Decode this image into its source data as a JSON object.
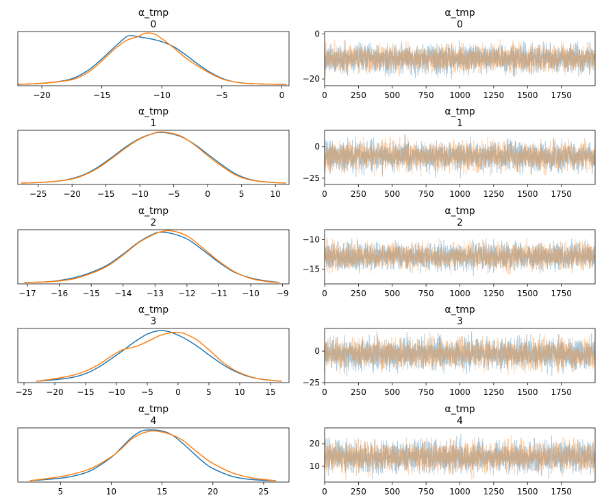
{
  "chart_data": [
    {
      "type": "line",
      "kind": "kde",
      "title_var": "α_tmp",
      "title_index": "0",
      "xlim": [
        -22,
        0.6
      ],
      "xticks": [
        -20,
        -15,
        -10,
        -5,
        0
      ],
      "series": [
        {
          "color": "#1f77b4",
          "x": [
            -22,
            -20,
            -18,
            -17,
            -16,
            -15,
            -14,
            -13,
            -12.5,
            -12,
            -11,
            -10,
            -9,
            -8,
            -7,
            -6,
            -5,
            -4,
            -3,
            -2,
            -1,
            0.4
          ],
          "y": [
            0,
            0.02,
            0.08,
            0.16,
            0.3,
            0.5,
            0.72,
            0.93,
            0.96,
            0.94,
            0.9,
            0.84,
            0.74,
            0.58,
            0.4,
            0.24,
            0.12,
            0.05,
            0.02,
            0.01,
            0.003,
            0
          ]
        },
        {
          "color": "#ff7f0e",
          "x": [
            -22,
            -20,
            -18,
            -17,
            -16,
            -15,
            -14,
            -13,
            -12,
            -11.5,
            -11,
            -10.5,
            -10,
            -9,
            -8,
            -7,
            -6,
            -5,
            -4,
            -3,
            -2,
            -1,
            0.4
          ],
          "y": [
            0,
            0.02,
            0.07,
            0.13,
            0.26,
            0.46,
            0.68,
            0.86,
            0.94,
            1.0,
            1.01,
            0.98,
            0.9,
            0.72,
            0.52,
            0.36,
            0.22,
            0.11,
            0.05,
            0.02,
            0.01,
            0.003,
            0
          ]
        }
      ]
    },
    {
      "type": "line",
      "kind": "trace",
      "title_var": "α_tmp",
      "title_index": "0",
      "xlim": [
        0,
        2000
      ],
      "ylim": [
        -23,
        1
      ],
      "xticks": [
        0,
        250,
        500,
        750,
        1000,
        1250,
        1500,
        1750
      ],
      "yticks": [
        0,
        -20
      ],
      "trace": {
        "n": 2000,
        "center": -11,
        "spread": 3.2
      },
      "series": [
        {
          "color": "#1f77b4"
        },
        {
          "color": "#ff7f0e"
        }
      ]
    },
    {
      "type": "line",
      "kind": "kde",
      "title_var": "α_tmp",
      "title_index": "1",
      "xlim": [
        -28,
        12
      ],
      "xticks": [
        -25,
        -20,
        -15,
        -10,
        -5,
        0,
        5,
        10
      ],
      "series": [
        {
          "color": "#1f77b4",
          "x": [
            -27.5,
            -25,
            -22,
            -20,
            -18,
            -16,
            -14,
            -12,
            -10,
            -8,
            -7,
            -6,
            -4,
            -2,
            0,
            2,
            4,
            6,
            8,
            10,
            11.5
          ],
          "y": [
            0,
            0.01,
            0.04,
            0.09,
            0.18,
            0.33,
            0.52,
            0.72,
            0.88,
            0.98,
            1.0,
            0.99,
            0.92,
            0.77,
            0.57,
            0.37,
            0.19,
            0.08,
            0.03,
            0.01,
            0
          ]
        },
        {
          "color": "#ff7f0e",
          "x": [
            -27.5,
            -25,
            -22,
            -20,
            -18,
            -16,
            -14,
            -12,
            -10,
            -8,
            -7,
            -6,
            -4,
            -2,
            0,
            2,
            4,
            6,
            8,
            10,
            11.5
          ],
          "y": [
            0,
            0.01,
            0.04,
            0.08,
            0.17,
            0.31,
            0.5,
            0.7,
            0.87,
            0.98,
            1.01,
            1.0,
            0.93,
            0.76,
            0.54,
            0.34,
            0.17,
            0.07,
            0.03,
            0.01,
            0
          ]
        }
      ]
    },
    {
      "type": "line",
      "kind": "trace",
      "title_var": "α_tmp",
      "title_index": "1",
      "xlim": [
        0,
        2000
      ],
      "ylim": [
        -30,
        13
      ],
      "xticks": [
        0,
        250,
        500,
        750,
        1000,
        1250,
        1500,
        1750
      ],
      "yticks": [
        0,
        -25
      ],
      "trace": {
        "n": 2000,
        "center": -7.5,
        "spread": 6
      },
      "series": [
        {
          "color": "#1f77b4"
        },
        {
          "color": "#ff7f0e"
        }
      ]
    },
    {
      "type": "line",
      "kind": "kde",
      "title_var": "α_tmp",
      "title_index": "2",
      "xlim": [
        -17.3,
        -8.8
      ],
      "xticks": [
        -17,
        -16,
        -15,
        -14,
        -13,
        -12,
        -11,
        -10,
        -9
      ],
      "series": [
        {
          "color": "#1f77b4",
          "x": [
            -17.1,
            -16.5,
            -16,
            -15.5,
            -15,
            -14.5,
            -14,
            -13.5,
            -13,
            -12.8,
            -12.5,
            -12,
            -11.5,
            -11,
            -10.5,
            -10,
            -9.5,
            -9.1
          ],
          "y": [
            0,
            0.01,
            0.04,
            0.1,
            0.2,
            0.34,
            0.56,
            0.8,
            0.97,
            0.99,
            0.97,
            0.86,
            0.64,
            0.4,
            0.2,
            0.09,
            0.03,
            0
          ]
        },
        {
          "color": "#ff7f0e",
          "x": [
            -17.1,
            -16.5,
            -16,
            -15.5,
            -15,
            -14.5,
            -14,
            -13.5,
            -13,
            -12.8,
            -12.5,
            -12,
            -11.5,
            -11,
            -10.5,
            -10,
            -9.5,
            -9.1
          ],
          "y": [
            0,
            0.01,
            0.03,
            0.08,
            0.18,
            0.32,
            0.54,
            0.79,
            0.96,
            1.0,
            1.02,
            0.92,
            0.68,
            0.42,
            0.21,
            0.08,
            0.02,
            0
          ]
        }
      ]
    },
    {
      "type": "line",
      "kind": "trace",
      "title_var": "α_tmp",
      "title_index": "2",
      "xlim": [
        0,
        2000
      ],
      "ylim": [
        -17.5,
        -8.3
      ],
      "xticks": [
        0,
        250,
        500,
        750,
        1000,
        1250,
        1500,
        1750
      ],
      "yticks": [
        -10,
        -15
      ],
      "trace": {
        "n": 2000,
        "center": -12.8,
        "spread": 1.2
      },
      "series": [
        {
          "color": "#1f77b4"
        },
        {
          "color": "#ff7f0e"
        }
      ]
    },
    {
      "type": "line",
      "kind": "kde",
      "title_var": "α_tmp",
      "title_index": "3",
      "xlim": [
        -26,
        18
      ],
      "xticks": [
        -25,
        -20,
        -15,
        -10,
        -5,
        0,
        5,
        10,
        15
      ],
      "series": [
        {
          "color": "#1f77b4",
          "x": [
            -23,
            -20,
            -17,
            -15,
            -13,
            -11,
            -9,
            -7,
            -5,
            -3,
            -2,
            -1,
            1,
            3,
            5,
            7,
            9,
            11,
            13,
            15,
            16.8
          ],
          "y": [
            0,
            0.03,
            0.08,
            0.15,
            0.27,
            0.43,
            0.6,
            0.78,
            0.93,
            1.0,
            0.99,
            0.96,
            0.85,
            0.7,
            0.52,
            0.35,
            0.21,
            0.11,
            0.05,
            0.02,
            0
          ]
        },
        {
          "color": "#ff7f0e",
          "x": [
            -23,
            -20,
            -17,
            -15,
            -13,
            -11,
            -9,
            -7,
            -5,
            -3,
            -1,
            0,
            1,
            3,
            5,
            7,
            9,
            11,
            13,
            15,
            16.8
          ],
          "y": [
            0,
            0.05,
            0.12,
            0.2,
            0.32,
            0.48,
            0.62,
            0.68,
            0.78,
            0.9,
            0.96,
            0.96,
            0.94,
            0.82,
            0.62,
            0.4,
            0.23,
            0.12,
            0.05,
            0.02,
            0
          ]
        }
      ]
    },
    {
      "type": "line",
      "kind": "trace",
      "title_var": "α_tmp",
      "title_index": "3",
      "xlim": [
        0,
        2000
      ],
      "ylim": [
        -25,
        18
      ],
      "xticks": [
        0,
        250,
        500,
        750,
        1000,
        1250,
        1500,
        1750
      ],
      "yticks": [
        0,
        -25
      ],
      "trace": {
        "n": 2000,
        "center": -2,
        "spread": 6.5
      },
      "series": [
        {
          "color": "#1f77b4"
        },
        {
          "color": "#ff7f0e"
        }
      ]
    },
    {
      "type": "line",
      "kind": "kde",
      "title_var": "α_tmp",
      "title_index": "4",
      "xlim": [
        0.8,
        27.5
      ],
      "xticks": [
        5,
        10,
        15,
        20,
        25
      ],
      "series": [
        {
          "color": "#1f77b4",
          "x": [
            2,
            4,
            6,
            8,
            10,
            11,
            12,
            13,
            14,
            15,
            16,
            17,
            18,
            19,
            20,
            22,
            24,
            26.2
          ],
          "y": [
            0,
            0.03,
            0.08,
            0.2,
            0.46,
            0.65,
            0.85,
            0.98,
            1.0,
            0.98,
            0.9,
            0.74,
            0.56,
            0.38,
            0.24,
            0.08,
            0.02,
            0
          ]
        },
        {
          "color": "#ff7f0e",
          "x": [
            2,
            4,
            6,
            8,
            10,
            11,
            12,
            13,
            14,
            15,
            16,
            17,
            18,
            19,
            20,
            22,
            24,
            26.2
          ],
          "y": [
            0,
            0.05,
            0.12,
            0.24,
            0.47,
            0.63,
            0.82,
            0.93,
            0.98,
            0.96,
            0.9,
            0.8,
            0.64,
            0.48,
            0.34,
            0.15,
            0.05,
            0
          ]
        }
      ]
    },
    {
      "type": "line",
      "kind": "trace",
      "title_var": "α_tmp",
      "title_index": "4",
      "xlim": [
        0,
        2000
      ],
      "ylim": [
        3,
        27
      ],
      "xticks": [
        0,
        250,
        500,
        750,
        1000,
        1250,
        1500,
        1750
      ],
      "yticks": [
        20,
        10
      ],
      "trace": {
        "n": 2000,
        "center": 14.2,
        "spread": 3.6
      },
      "series": [
        {
          "color": "#1f77b4"
        },
        {
          "color": "#ff7f0e"
        }
      ]
    }
  ]
}
